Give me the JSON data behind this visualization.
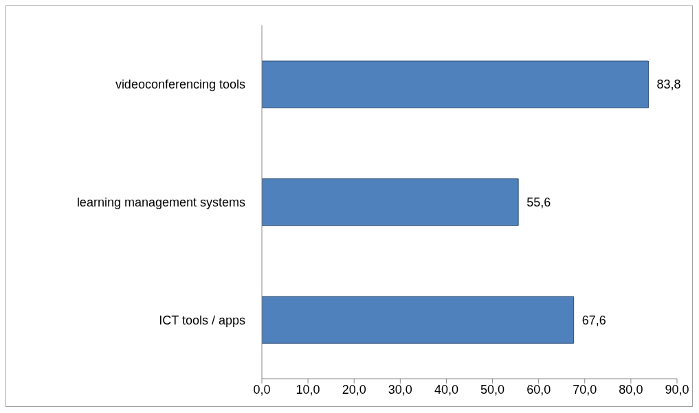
{
  "chart_data": {
    "type": "bar",
    "orientation": "horizontal",
    "categories": [
      "videoconferencing tools",
      "learning management systems",
      "ICT tools / apps"
    ],
    "values": [
      83.8,
      55.6,
      67.6
    ],
    "value_labels": [
      "83,8",
      "55,6",
      "67,6"
    ],
    "color": "#4f81bd",
    "xlim": [
      0,
      90
    ],
    "xticks": [
      {
        "value": 0,
        "label": "0,0"
      },
      {
        "value": 10,
        "label": "10,0"
      },
      {
        "value": 20,
        "label": "20,0"
      },
      {
        "value": 30,
        "label": "30,0"
      },
      {
        "value": 40,
        "label": "40,0"
      },
      {
        "value": 50,
        "label": "50,0"
      },
      {
        "value": 60,
        "label": "60,0"
      },
      {
        "value": 70,
        "label": "70,0"
      },
      {
        "value": 80,
        "label": "80,0"
      },
      {
        "value": 90,
        "label": "90,0"
      }
    ],
    "grid": false,
    "legend": false
  }
}
